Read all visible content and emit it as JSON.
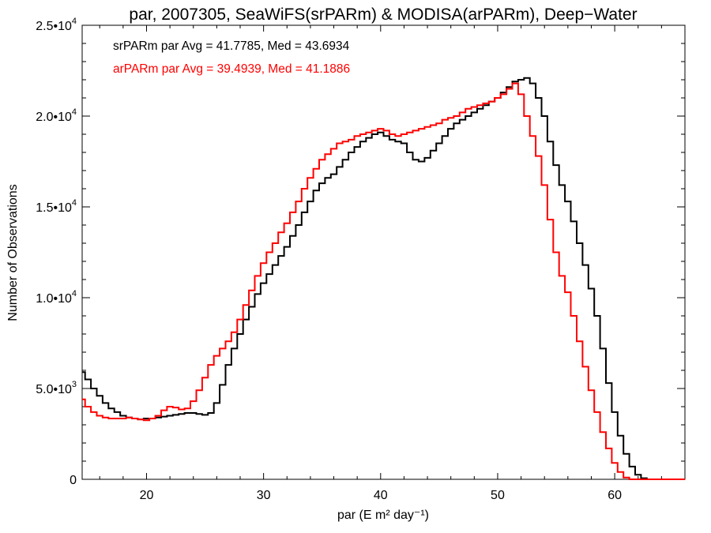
{
  "chart_data": {
    "type": "line",
    "title": "par, 2007305, SeaWiFS(srPARm) & MODISA(arPARm), Deep−Water",
    "xlabel": "par (E m² day⁻¹)",
    "ylabel": "Number of Observations",
    "xlim": [
      14.5,
      66
    ],
    "ylim": [
      0,
      25000
    ],
    "x_ticks": [
      20,
      30,
      40,
      50,
      60
    ],
    "x_tick_labels": [
      "20",
      "30",
      "40",
      "50",
      "60"
    ],
    "y_ticks": [
      0,
      5000,
      10000,
      15000,
      20000,
      25000
    ],
    "y_tick_labels": [
      {
        "mant": "0",
        "exp": ""
      },
      {
        "mant": "5.0•10",
        "exp": "3"
      },
      {
        "mant": "1.0•10",
        "exp": "4"
      },
      {
        "mant": "1.5•10",
        "exp": "4"
      },
      {
        "mant": "2.0•10",
        "exp": "4"
      },
      {
        "mant": "2.5•10",
        "exp": "4"
      }
    ],
    "grid": false,
    "annotations": [
      {
        "text": "srPARm par Avg = 41.7785, Med = 43.6934",
        "color": "#000000"
      },
      {
        "text": "arPARm par Avg = 39.4939, Med = 41.1886",
        "color": "#ff0000"
      }
    ],
    "series": [
      {
        "color": "#000000",
        "x": [
          14.5,
          15,
          15.5,
          16,
          16.5,
          17,
          17.5,
          18,
          18.5,
          19,
          19.5,
          20,
          20.5,
          21,
          21.5,
          22,
          22.5,
          23,
          23.5,
          24,
          24.5,
          25,
          25.5,
          26,
          26.5,
          27,
          27.5,
          28,
          28.5,
          29,
          29.5,
          30,
          30.5,
          31,
          31.5,
          32,
          32.5,
          33,
          33.5,
          34,
          34.5,
          35,
          35.5,
          36,
          36.5,
          37,
          37.5,
          38,
          38.5,
          39,
          39.5,
          40,
          40.5,
          41,
          41.5,
          42,
          42.5,
          43,
          43.5,
          44,
          44.5,
          45,
          45.5,
          46,
          46.5,
          47,
          47.5,
          48,
          48.5,
          49,
          49.5,
          50,
          50.5,
          51,
          51.5,
          52,
          52.5,
          53,
          53.5,
          54,
          54.5,
          55,
          55.5,
          56,
          56.5,
          57,
          57.5,
          58,
          58.5,
          59,
          59.5,
          60,
          60.5,
          61,
          61.5,
          62,
          62.5,
          63,
          63.5,
          64,
          64.5,
          65,
          65.5,
          66
        ],
        "values": [
          5900,
          5500,
          5000,
          4600,
          4200,
          3900,
          3700,
          3500,
          3400,
          3350,
          3300,
          3350,
          3350,
          3400,
          3450,
          3500,
          3550,
          3600,
          3650,
          3650,
          3600,
          3550,
          3650,
          4200,
          5200,
          6300,
          7200,
          8000,
          8800,
          9500,
          10200,
          10800,
          11300,
          11800,
          12300,
          12800,
          13400,
          14000,
          14700,
          15300,
          15900,
          16300,
          16600,
          16800,
          17200,
          17600,
          18000,
          18300,
          18600,
          18800,
          19000,
          19100,
          18900,
          18700,
          18600,
          18500,
          18000,
          17600,
          17500,
          17700,
          18100,
          18500,
          18900,
          19300,
          19600,
          19800,
          20000,
          20200,
          20400,
          20600,
          20800,
          21000,
          21300,
          21600,
          21900,
          22000,
          22100,
          21800,
          21000,
          20000,
          18600,
          17300,
          16200,
          15300,
          14200,
          13000,
          11800,
          10500,
          9000,
          7200,
          5300,
          3700,
          2400,
          1400,
          700,
          250,
          60,
          0,
          0,
          0,
          0,
          0,
          0,
          0
        ]
      },
      {
        "color": "#ff0000",
        "x": [
          14.5,
          15,
          15.5,
          16,
          16.5,
          17,
          17.5,
          18,
          18.5,
          19,
          19.5,
          20,
          20.5,
          21,
          21.5,
          22,
          22.5,
          23,
          23.5,
          24,
          24.5,
          25,
          25.5,
          26,
          26.5,
          27,
          27.5,
          28,
          28.5,
          29,
          29.5,
          30,
          30.5,
          31,
          31.5,
          32,
          32.5,
          33,
          33.5,
          34,
          34.5,
          35,
          35.5,
          36,
          36.5,
          37,
          37.5,
          38,
          38.5,
          39,
          39.5,
          40,
          40.5,
          41,
          41.5,
          42,
          42.5,
          43,
          43.5,
          44,
          44.5,
          45,
          45.5,
          46,
          46.5,
          47,
          47.5,
          48,
          48.5,
          49,
          49.5,
          50,
          50.5,
          51,
          51.5,
          52,
          52.5,
          53,
          53.5,
          54,
          54.5,
          55,
          55.5,
          56,
          56.5,
          57,
          57.5,
          58,
          58.5,
          59,
          59.5,
          60,
          60.5,
          61,
          61.5,
          62,
          62.5,
          63,
          63.5,
          64,
          64.5,
          65,
          65.5,
          66
        ],
        "values": [
          4400,
          4000,
          3700,
          3500,
          3400,
          3350,
          3350,
          3350,
          3400,
          3350,
          3300,
          3250,
          3350,
          3500,
          3800,
          4000,
          3950,
          3850,
          3900,
          4300,
          4900,
          5600,
          6300,
          6800,
          7200,
          7600,
          8100,
          8800,
          9600,
          10400,
          11200,
          11900,
          12500,
          13000,
          13600,
          14100,
          14700,
          15300,
          16000,
          16600,
          17100,
          17600,
          17900,
          18200,
          18500,
          18600,
          18700,
          18900,
          19000,
          19100,
          19200,
          19300,
          19200,
          19000,
          18900,
          19000,
          19100,
          19200,
          19300,
          19400,
          19500,
          19600,
          19800,
          19900,
          20000,
          20200,
          20400,
          20500,
          20600,
          20700,
          20800,
          21000,
          21200,
          21500,
          21800,
          21200,
          20000,
          18900,
          17800,
          16200,
          14300,
          12500,
          11200,
          10300,
          9000,
          7600,
          6200,
          4900,
          3700,
          2600,
          1700,
          900,
          400,
          100,
          0,
          0,
          0,
          0,
          0,
          0,
          0,
          0,
          0,
          0
        ]
      }
    ]
  }
}
